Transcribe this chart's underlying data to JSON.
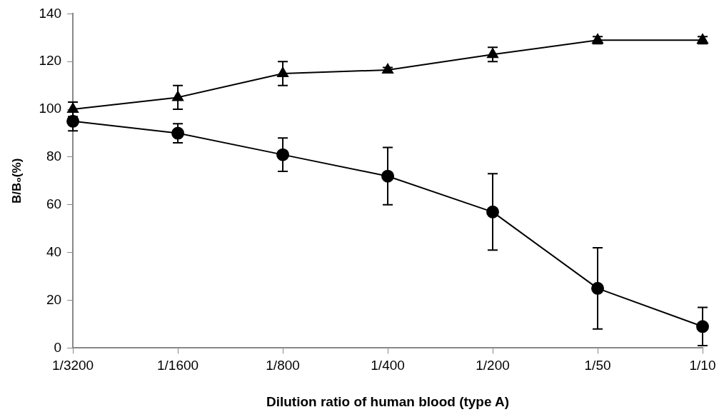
{
  "chart_data": {
    "type": "line",
    "xlabel": "Dilution ratio of human blood (type A)",
    "ylabel": "B/B₀(%)",
    "categories": [
      "1/3200",
      "1/1600",
      "1/800",
      "1/400",
      "1/200",
      "1/50",
      "1/10"
    ],
    "ylim": [
      0,
      140
    ],
    "yticks": [
      0,
      20,
      40,
      60,
      80,
      100,
      120,
      140
    ],
    "grid": false,
    "legend": false,
    "series": [
      {
        "color": "#000000",
        "marker": "triangle",
        "values": [
          100,
          105,
          115,
          116.5,
          123,
          129,
          129
        ],
        "errors": [
          3,
          5,
          5,
          1,
          3,
          1.5,
          1.5
        ]
      },
      {
        "color": "#000000",
        "marker": "circle",
        "values": [
          95,
          90,
          81,
          72,
          57,
          25,
          9
        ],
        "errors": [
          4,
          4,
          7,
          12,
          16,
          17,
          8
        ]
      }
    ]
  }
}
